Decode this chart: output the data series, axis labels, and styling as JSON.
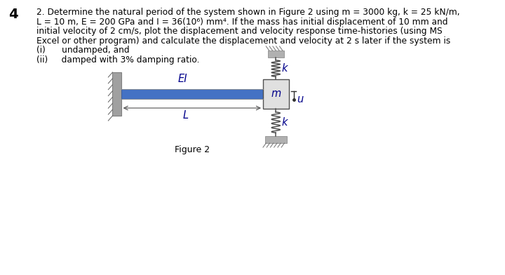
{
  "title_number": "4",
  "line1": "2. Determine the natural period of the system shown in Figure 2 using m = 3000 kg, k = 25 kN/m,",
  "line2": "L = 10 m, E = 200 GPa and I = 36(10⁶) mm⁴. If the mass has initial displacement of 10 mm and",
  "line3": "initial velocity of 2 cm/s, plot the displacement and velocity response time-histories (using MS",
  "line4": "Excel or other program) and calculate the displacement and velocity at 2 s later if the system is",
  "line5": "(i)      undamped, and",
  "line6": "(ii)     damped with 3% damping ratio.",
  "figure_label": "Figure 2",
  "label_EI": "EI",
  "label_m": "m",
  "label_k": "k",
  "label_L": "L",
  "label_u": "u",
  "beam_color": "#4472C4",
  "wall_color": "#A0A0A0",
  "mass_fill": "#E0E0E0",
  "ground_fill": "#B0B0B0",
  "text_color": "#000000",
  "label_color": "#00008B",
  "fs_body": 8.8,
  "fs_label": 10.5
}
